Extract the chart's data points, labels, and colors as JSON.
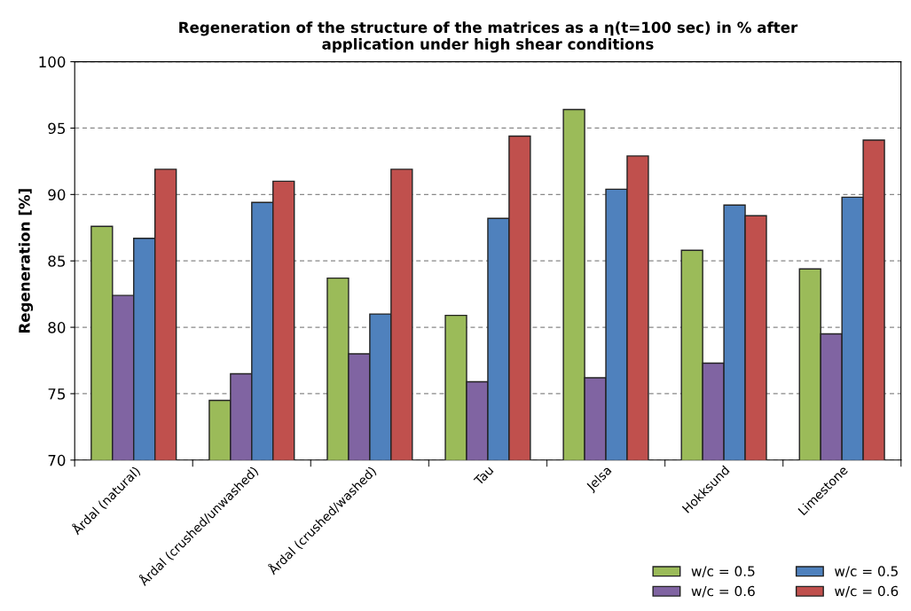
{
  "chart_data": {
    "type": "bar",
    "title": "Regeneration of the structure of the matrices as a η(t=100 sec) in % after\napplication under high shear conditions",
    "ylabel": "Regeneration [%]",
    "categories": [
      "Årdal (natural)",
      "Årdal (crushed/unwashed)",
      "Årdal (crushed/washed)",
      "Tau",
      "Jelsa",
      "Hokksund",
      "Limestone"
    ],
    "series": [
      {
        "name": "w/c = 0.5",
        "color": "#9bbb59",
        "values": [
          87.6,
          74.5,
          83.7,
          80.9,
          96.4,
          85.8,
          84.4
        ]
      },
      {
        "name": "w/c = 0.6",
        "color": "#8064a2",
        "values": [
          82.4,
          76.5,
          78.0,
          75.9,
          76.2,
          77.3,
          79.5
        ]
      },
      {
        "name": "w/c = 0.5",
        "color": "#4f81bd",
        "values": [
          86.7,
          89.4,
          81.0,
          88.2,
          90.4,
          89.2,
          89.8
        ]
      },
      {
        "name": "w/c = 0.6",
        "color": "#c0504d",
        "values": [
          91.9,
          91.0,
          91.9,
          94.4,
          92.9,
          88.4,
          94.1
        ]
      }
    ],
    "ylim": [
      70,
      100
    ],
    "yticks": [
      70,
      75,
      80,
      85,
      90,
      95,
      100
    ],
    "grid": "y",
    "legend": "bottom right"
  }
}
